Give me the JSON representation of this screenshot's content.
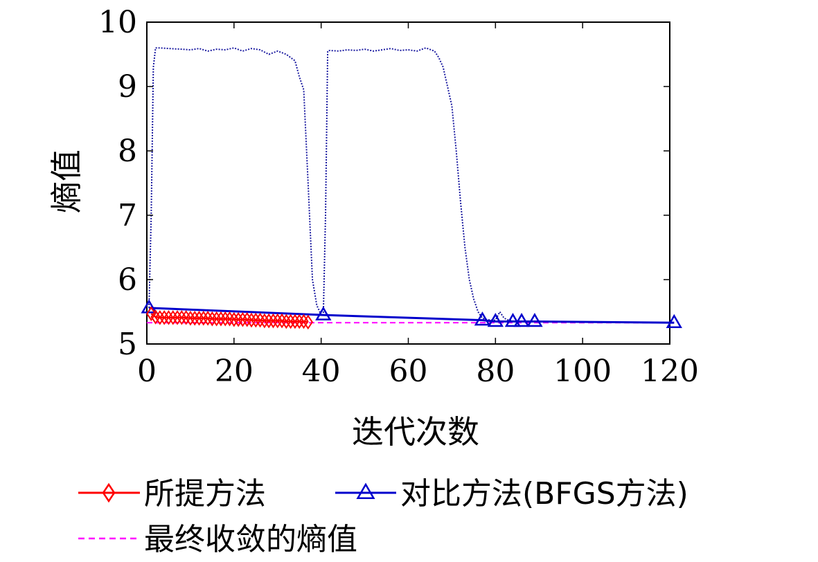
{
  "chart_data": {
    "type": "line",
    "xlabel": "迭代次数",
    "ylabel": "熵值",
    "xlim": [
      0,
      120
    ],
    "ylim": [
      5,
      10
    ],
    "xticks": [
      "0",
      "20",
      "40",
      "60",
      "80",
      "100",
      "120"
    ],
    "yticks": [
      "5",
      "6",
      "7",
      "8",
      "9",
      "10"
    ],
    "grid": false,
    "legend_placement": "bottom",
    "colors": {
      "proposed": "#ff0000",
      "bfgs": "#0000cc",
      "trace": "#1a1aa0",
      "final": "#ff00ff"
    },
    "series": [
      {
        "key": "proposed",
        "name": "所提方法",
        "marker": "diamond",
        "x": [
          1,
          2,
          3,
          4,
          5,
          6,
          7,
          8,
          9,
          10,
          11,
          12,
          13,
          14,
          15,
          16,
          17,
          18,
          19,
          20,
          21,
          22,
          23,
          24,
          25,
          26,
          27,
          28,
          29,
          30,
          31,
          32,
          33,
          34,
          35,
          36,
          37
        ],
        "y": [
          5.47,
          5.42,
          5.41,
          5.41,
          5.41,
          5.41,
          5.41,
          5.41,
          5.41,
          5.4,
          5.4,
          5.4,
          5.4,
          5.4,
          5.39,
          5.39,
          5.39,
          5.39,
          5.39,
          5.38,
          5.38,
          5.38,
          5.38,
          5.37,
          5.37,
          5.37,
          5.36,
          5.36,
          5.36,
          5.36,
          5.36,
          5.35,
          5.35,
          5.35,
          5.35,
          5.35,
          5.34
        ]
      },
      {
        "key": "bfgs",
        "name": "对比方法(BFGS方法)",
        "marker": "triangle",
        "x": [
          0.5,
          40.5,
          77,
          80,
          84,
          86,
          89,
          121
        ],
        "y": [
          5.56,
          5.45,
          5.37,
          5.35,
          5.35,
          5.35,
          5.35,
          5.33
        ]
      },
      {
        "key": "final",
        "name": "最终收敛的熵值",
        "style": "dashed",
        "x": [
          0,
          121
        ],
        "y": [
          5.33,
          5.33
        ]
      }
    ],
    "search_trace": {
      "style": "dotted",
      "x": [
        0.5,
        1,
        1.5,
        2,
        3,
        5,
        8,
        10,
        12,
        14,
        16,
        18,
        20,
        22,
        24,
        26,
        28,
        30,
        32,
        34,
        35,
        36,
        37,
        38,
        39,
        40,
        40.5,
        41,
        41.5,
        42,
        44,
        46,
        48,
        50,
        52,
        54,
        56,
        58,
        60,
        62,
        64,
        66,
        67,
        68,
        69,
        70,
        71,
        72,
        73,
        74,
        75,
        76,
        77,
        78,
        79,
        80,
        81,
        82,
        83,
        84
      ],
      "y": [
        5.56,
        7.0,
        9.3,
        9.6,
        9.6,
        9.59,
        9.58,
        9.57,
        9.59,
        9.55,
        9.58,
        9.57,
        9.6,
        9.55,
        9.59,
        9.57,
        9.5,
        9.55,
        9.5,
        9.4,
        9.15,
        8.95,
        7.5,
        6.0,
        5.6,
        5.45,
        5.45,
        7.0,
        9.55,
        9.56,
        9.55,
        9.57,
        9.56,
        9.58,
        9.55,
        9.57,
        9.59,
        9.56,
        9.57,
        9.55,
        9.6,
        9.55,
        9.45,
        9.3,
        9.0,
        8.7,
        8.0,
        7.2,
        6.5,
        6.0,
        5.7,
        5.5,
        5.4,
        5.38,
        5.37,
        5.37,
        5.5,
        5.4,
        5.37,
        5.36
      ]
    }
  }
}
